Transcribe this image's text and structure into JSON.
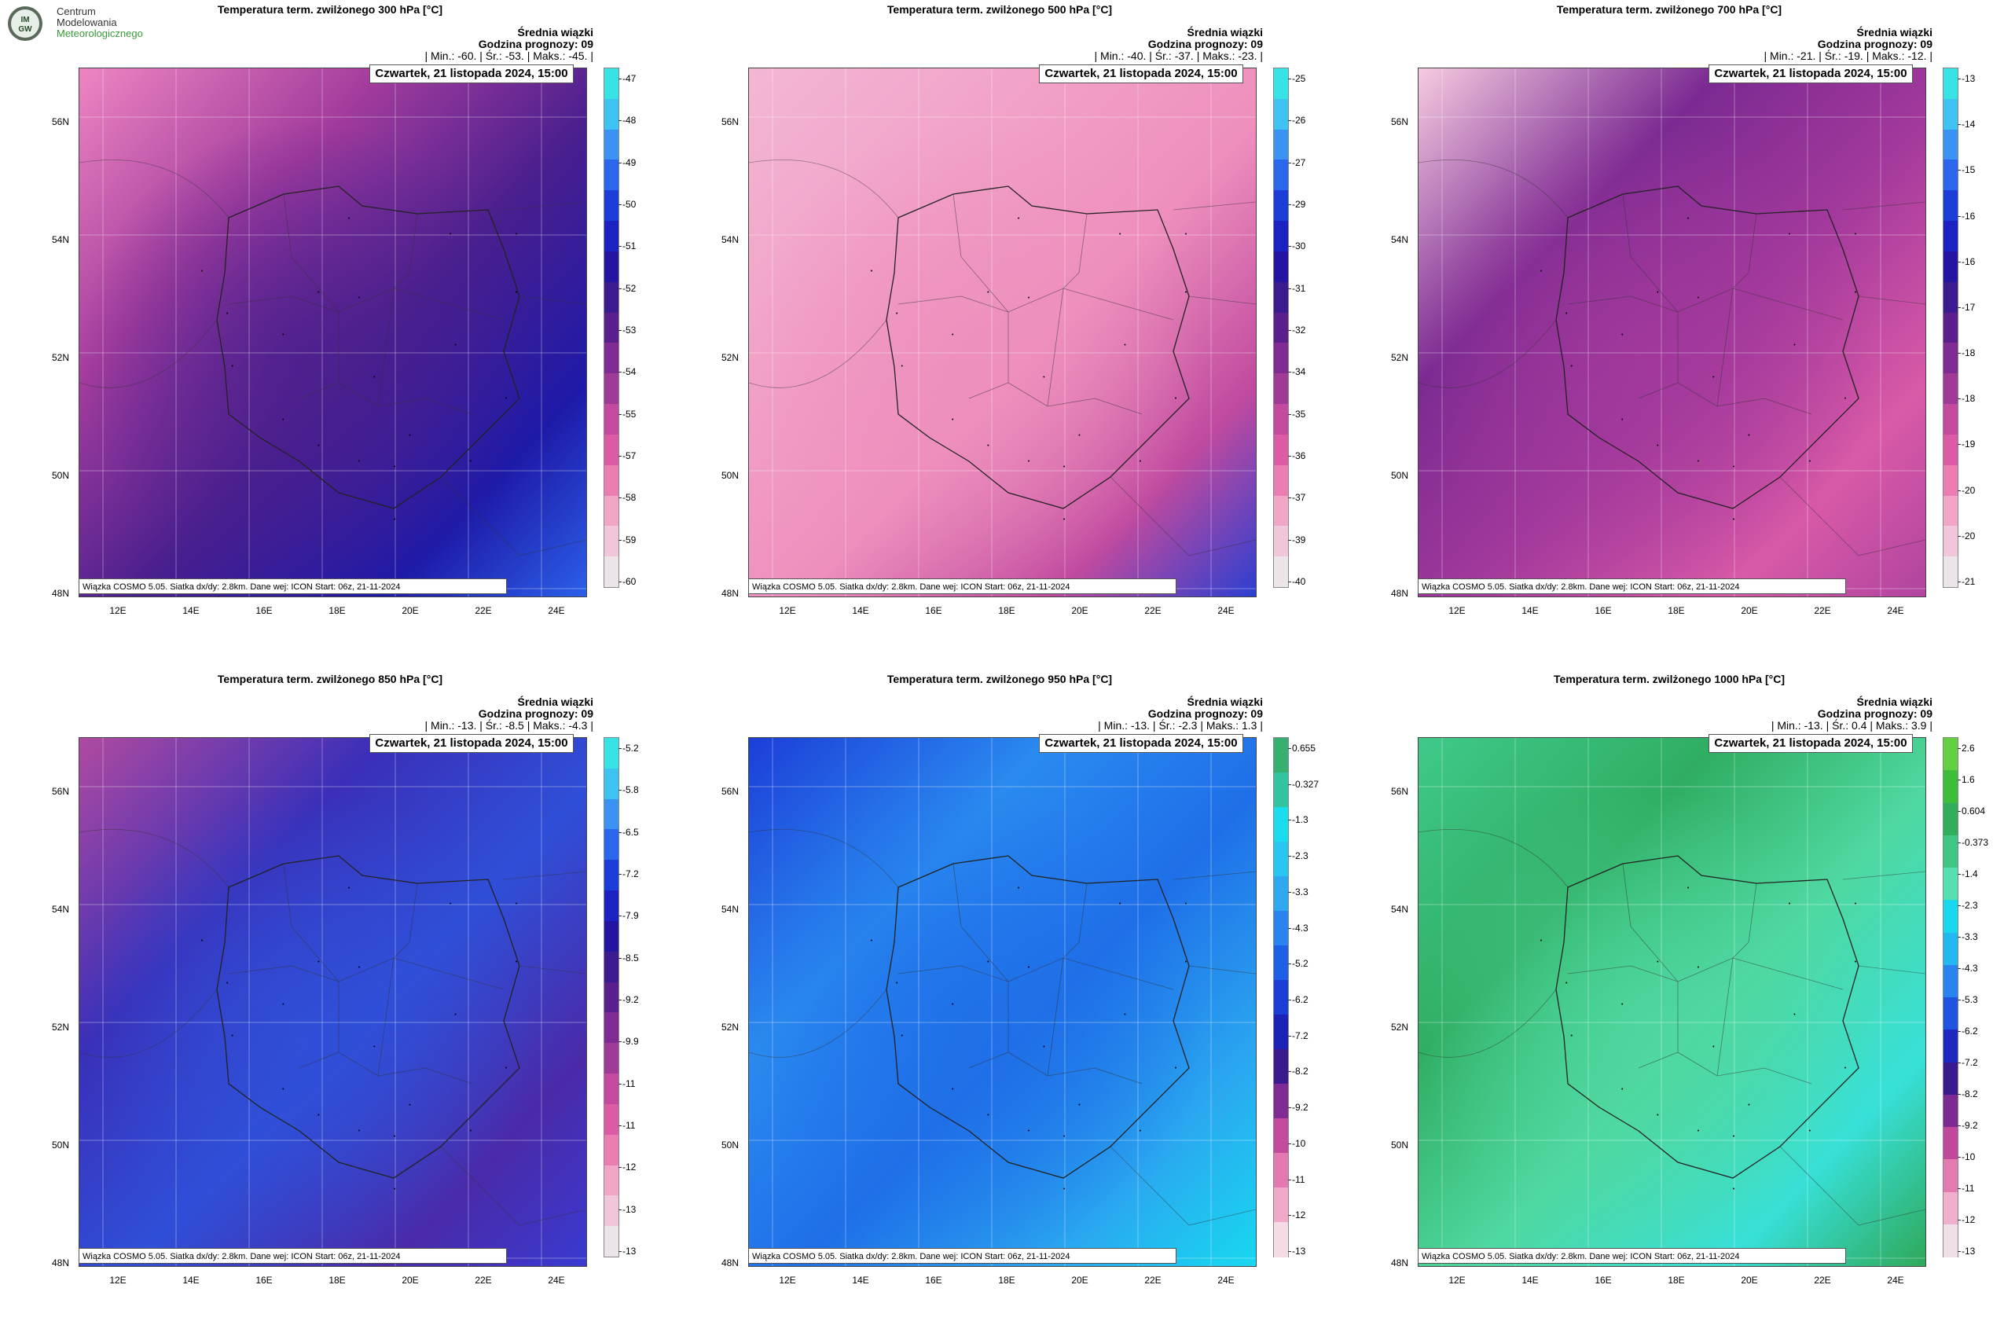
{
  "logo": {
    "line1": "Centrum",
    "line2": "Modelowania",
    "line3": "Meteorologicznego",
    "mark": "IMGW"
  },
  "colorbars": {
    "pink": [
      "#ece4e8",
      "#f0c6da",
      "#f1a6c7",
      "#ec7db3",
      "#dd5ba4",
      "#c34a9e",
      "#a03a97",
      "#7f2b93",
      "#5b1f8d",
      "#3c1a8f",
      "#2315a2",
      "#1b22c1",
      "#1c3ed8",
      "#2a67ec",
      "#3a92f3",
      "#3ec2f2",
      "#35e2e4"
    ],
    "blue": [
      "#f4dbe6",
      "#f0a9c8",
      "#e478b0",
      "#c34a9e",
      "#7f2b93",
      "#3b1a8f",
      "#1c22b8",
      "#1c3ed8",
      "#1f5fe8",
      "#2a84f0",
      "#2fa8f2",
      "#29c6f1",
      "#19dcef",
      "#32c4a0",
      "#36b070"
    ],
    "green": [
      "#f0dfe6",
      "#f0b0cd",
      "#e37bb0",
      "#c0499d",
      "#7d2a92",
      "#3a1a8f",
      "#1c28c0",
      "#1f54e3",
      "#2a84f0",
      "#22b8f0",
      "#18d8ef",
      "#54e0b0",
      "#40c683",
      "#32ad5c",
      "#3cbe3a",
      "#62d040"
    ]
  },
  "panels": [
    {
      "id": "t300",
      "title": "Temperatura term. zwilżonego 300 hPa [°C]",
      "stats_title": "Średnia wiązki",
      "stats_hour": "Godzina prognozy: 09",
      "stats_line": "| Min.:   -60. | Śr.:   -53. | Maks.:   -45. |",
      "date": "Czwartek, 21 listopada 2024, 15:00",
      "footer": "Wiązka COSMO 5.05. Siatka dx/dy: 2.8km. Dane wej: ICON Start: 06z, 21-11-2024",
      "scale": "pink",
      "bg": [
        "#ee85c2",
        "#a33c9d",
        "#4a1f8e",
        "#1e1aa8",
        "#2b5fe8"
      ],
      "colorbar_labels": [
        "-47",
        "-48",
        "-49",
        "-50",
        "-51",
        "-52",
        "-53",
        "-54",
        "-55",
        "-57",
        "-58",
        "-59",
        "-60"
      ]
    },
    {
      "id": "t500",
      "title": "Temperatura term. zwilżonego 500 hPa [°C]",
      "stats_title": "Średnia wiązki",
      "stats_hour": "Godzina prognozy: 09",
      "stats_line": "| Min.:   -40. | Śr.:   -37. | Maks.:   -23. |",
      "date": "Czwartek, 21 listopada 2024, 15:00",
      "footer": "Wiązka COSMO 5.05. Siatka dx/dy: 2.8km. Dane wej: ICON Start: 06z, 21-11-2024",
      "scale": "pink",
      "bg": [
        "#f3b7d3",
        "#f1a1c6",
        "#ee8fbd",
        "#c04a9f",
        "#2b3fd0"
      ],
      "colorbar_labels": [
        "-25",
        "-26",
        "-27",
        "-29",
        "-30",
        "-31",
        "-32",
        "-34",
        "-35",
        "-36",
        "-37",
        "-39",
        "-40"
      ]
    },
    {
      "id": "t700",
      "title": "Temperatura term. zwilżonego 700 hPa [°C]",
      "stats_title": "Średnia wiązki",
      "stats_hour": "Godzina prognozy: 09",
      "stats_line": "| Min.:   -21. | Śr.:   -19. | Maks.:   -12. |",
      "date": "Czwartek, 21 listopada 2024, 15:00",
      "footer": "Wiązka COSMO 5.05. Siatka dx/dy: 2.8km. Dane wej: ICON Start: 06z, 21-11-2024",
      "scale": "pink",
      "bg": [
        "#f6cbe0",
        "#7b2a92",
        "#a3399c",
        "#d95aa7",
        "#b0449f"
      ],
      "colorbar_labels": [
        "-13",
        "-14",
        "-15",
        "-16",
        "-16",
        "-17",
        "-18",
        "-18",
        "-19",
        "-20",
        "-20",
        "-21"
      ]
    },
    {
      "id": "t850",
      "title": "Temperatura term. zwilżonego 850 hPa [°C]",
      "stats_title": "Średnia wiązki",
      "stats_hour": "Godzina prognozy: 09",
      "stats_line": "| Min.:   -13. | Śr.:   -8.5 | Maks.:   -4.3 |",
      "date": "Czwartek, 21 listopada 2024, 15:00",
      "footer": "Wiązka COSMO 5.05. Siatka dx/dy: 2.8km. Dane wej: ICON Start: 06z, 21-11-2024",
      "scale": "pink",
      "bg": [
        "#b04aa0",
        "#3a2fb8",
        "#2f4fd8",
        "#4a2aa8",
        "#3a3ad0"
      ],
      "colorbar_labels": [
        "-5.2",
        "-5.8",
        "-6.5",
        "-7.2",
        "-7.9",
        "-8.5",
        "-9.2",
        "-9.9",
        "-11",
        "-11",
        "-12",
        "-13",
        "-13"
      ]
    },
    {
      "id": "t950",
      "title": "Temperatura term. zwilżonego 950 hPa [°C]",
      "stats_title": "Średnia wiązki",
      "stats_hour": "Godzina prognozy: 09",
      "stats_line": "| Min.:   -13. | Śr.:   -2.3 | Maks.:   1.3 |",
      "date": "Czwartek, 21 listopada 2024, 15:00",
      "footer": "Wiązka COSMO 5.05. Siatka dx/dy: 2.8km. Dane wej: ICON Start: 06z, 21-11-2024",
      "scale": "blue",
      "bg": [
        "#1c3ed8",
        "#2a8af0",
        "#1f6fe8",
        "#2aa8f0",
        "#18d8ef"
      ],
      "colorbar_labels": [
        "0.655",
        "-0.327",
        "-1.3",
        "-2.3",
        "-3.3",
        "-4.3",
        "-5.2",
        "-6.2",
        "-7.2",
        "-8.2",
        "-9.2",
        "-10",
        "-11",
        "-12",
        "-13"
      ]
    },
    {
      "id": "t1000",
      "title": "Temperatura term. zwilżonego 1000 hPa [°C]",
      "stats_title": "Średnia wiązki",
      "stats_hour": "Godzina prognozy: 09",
      "stats_line": "| Min.:   -13. | Śr.:   0.4 | Maks.:   3.9 |",
      "date": "Czwartek, 21 listopada 2024, 15:00",
      "footer": "Wiązka COSMO 5.05. Siatka dx/dy: 2.8km. Dane wej: ICON Start: 06z, 21-11-2024",
      "scale": "green",
      "bg": [
        "#3fc98a",
        "#2fae62",
        "#4fd8a0",
        "#37e0d8",
        "#2fa85a"
      ],
      "colorbar_labels": [
        "2.6",
        "1.6",
        "0.604",
        "-0.373",
        "-1.4",
        "-2.3",
        "-3.3",
        "-4.3",
        "-5.3",
        "-6.2",
        "-7.2",
        "-8.2",
        "-9.2",
        "-10",
        "-11",
        "-12",
        "-13"
      ]
    }
  ],
  "axes": {
    "lat_labels": [
      "56N",
      "54N",
      "52N",
      "50N",
      "48N"
    ],
    "lon_labels": [
      "12E",
      "14E",
      "16E",
      "18E",
      "20E",
      "22E",
      "24E"
    ]
  }
}
